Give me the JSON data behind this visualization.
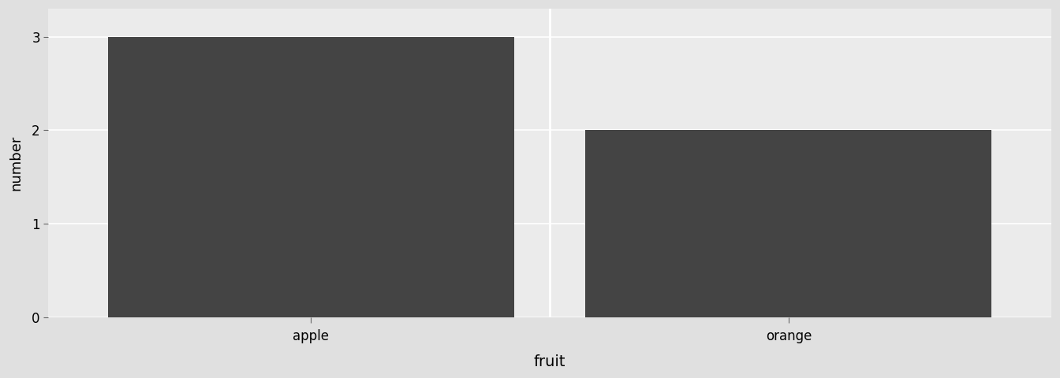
{
  "categories": [
    "apple",
    "orange"
  ],
  "values": [
    3,
    2
  ],
  "bar_color": "#444444",
  "panel_background": "#ebebeb",
  "xlabel": "fruit",
  "ylabel": "number",
  "ylim": [
    0,
    3.3
  ],
  "yticks": [
    0,
    1,
    2,
    3
  ],
  "xlabel_fontsize": 14,
  "ylabel_fontsize": 13,
  "tick_fontsize": 12,
  "bar_width": 0.85,
  "grid_color": "#ffffff",
  "outer_background": "#e0e0e0",
  "panel_divider_color": "#ffffff",
  "xlim": [
    -0.55,
    1.55
  ]
}
